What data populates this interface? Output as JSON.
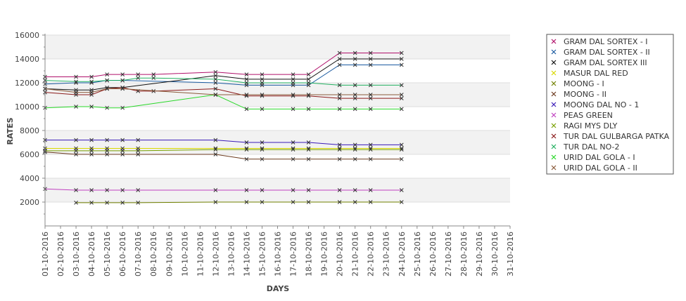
{
  "chart_data": {
    "type": "line",
    "xlabel": "DAYS",
    "ylabel": "RATES",
    "ylim": [
      0,
      16000
    ],
    "yticks": [
      2000,
      4000,
      6000,
      8000,
      10000,
      12000,
      14000,
      16000
    ],
    "grid": "alternating horizontal bands",
    "legend_position": "right",
    "categories": [
      "01-10-2016",
      "02-10-2016",
      "03-10-2016",
      "04-10-2016",
      "05-10-2016",
      "06-10-2016",
      "07-10-2016",
      "08-10-2016",
      "09-10-2016",
      "10-10-2016",
      "11-10-2016",
      "12-10-2016",
      "13-10-2016",
      "14-10-2016",
      "15-10-2016",
      "16-10-2016",
      "17-10-2016",
      "18-10-2016",
      "19-10-2016",
      "20-10-2016",
      "21-10-2016",
      "22-10-2016",
      "23-10-2016",
      "24-10-2016",
      "25-10-2016",
      "26-10-2016",
      "27-10-2016",
      "28-10-2016",
      "29-10-2016",
      "30-10-2016",
      "31-10-2016"
    ],
    "series": [
      {
        "name": "GRAM DAL SORTEX  - I",
        "color": "#b0106a",
        "points": [
          [
            0,
            12500
          ],
          [
            2,
            12500
          ],
          [
            3,
            12500
          ],
          [
            4,
            12700
          ],
          [
            5,
            12700
          ],
          [
            6,
            12700
          ],
          [
            7,
            12700
          ],
          [
            11,
            12900
          ],
          [
            13,
            12700
          ],
          [
            14,
            12700
          ],
          [
            16,
            12700
          ],
          [
            17,
            12700
          ],
          [
            19,
            14500
          ],
          [
            20,
            14500
          ],
          [
            21,
            14500
          ],
          [
            23,
            14500
          ]
        ]
      },
      {
        "name": "GRAM DAL SORTEX - II",
        "color": "#1a5aa0",
        "points": [
          [
            0,
            11900
          ],
          [
            2,
            12000
          ],
          [
            3,
            12000
          ],
          [
            4,
            12200
          ],
          [
            5,
            12200
          ],
          [
            11,
            12000
          ],
          [
            13,
            11800
          ],
          [
            14,
            11800
          ],
          [
            16,
            11800
          ],
          [
            17,
            11800
          ],
          [
            19,
            13500
          ],
          [
            20,
            13500
          ],
          [
            21,
            13500
          ],
          [
            23,
            13500
          ]
        ]
      },
      {
        "name": "GRAM DAL SORTEX III",
        "color": "#111111",
        "points": [
          [
            0,
            11500
          ],
          [
            2,
            11400
          ],
          [
            3,
            11400
          ],
          [
            4,
            11600
          ],
          [
            5,
            11600
          ],
          [
            11,
            12600
          ],
          [
            13,
            12300
          ],
          [
            14,
            12300
          ],
          [
            16,
            12300
          ],
          [
            17,
            12300
          ],
          [
            19,
            14000
          ],
          [
            20,
            14000
          ],
          [
            21,
            14000
          ],
          [
            23,
            14000
          ]
        ]
      },
      {
        "name": "MASUR DAL RED",
        "color": "#d8d800",
        "points": [
          [
            0,
            6500
          ],
          [
            2,
            6500
          ],
          [
            3,
            6500
          ],
          [
            4,
            6500
          ],
          [
            5,
            6500
          ],
          [
            6,
            6500
          ],
          [
            11,
            6500
          ],
          [
            13,
            6500
          ],
          [
            14,
            6500
          ],
          [
            16,
            6500
          ],
          [
            17,
            6500
          ],
          [
            19,
            6500
          ],
          [
            20,
            6500
          ],
          [
            21,
            6500
          ],
          [
            23,
            6500
          ]
        ]
      },
      {
        "name": "MOONG - I",
        "color": "#708000",
        "points": [
          [
            2,
            1950
          ],
          [
            3,
            1950
          ],
          [
            4,
            1950
          ],
          [
            5,
            1950
          ],
          [
            6,
            1950
          ],
          [
            11,
            2000
          ],
          [
            13,
            2000
          ],
          [
            14,
            2000
          ],
          [
            16,
            2000
          ],
          [
            17,
            2000
          ],
          [
            19,
            2000
          ],
          [
            20,
            2000
          ],
          [
            21,
            2000
          ],
          [
            23,
            2000
          ]
        ]
      },
      {
        "name": "MOONG - II",
        "color": "#6b3a1e",
        "points": [
          [
            0,
            6200
          ],
          [
            2,
            6000
          ],
          [
            3,
            6000
          ],
          [
            4,
            6000
          ],
          [
            5,
            6000
          ],
          [
            6,
            6000
          ],
          [
            11,
            6000
          ],
          [
            13,
            5600
          ],
          [
            14,
            5600
          ],
          [
            16,
            5600
          ],
          [
            17,
            5600
          ],
          [
            19,
            5600
          ],
          [
            20,
            5600
          ],
          [
            21,
            5600
          ],
          [
            23,
            5600
          ]
        ]
      },
      {
        "name": "MOONG DAL NO - 1",
        "color": "#3a1ab8",
        "points": [
          [
            0,
            7200
          ],
          [
            2,
            7200
          ],
          [
            3,
            7200
          ],
          [
            4,
            7200
          ],
          [
            5,
            7200
          ],
          [
            6,
            7200
          ],
          [
            11,
            7200
          ],
          [
            13,
            7000
          ],
          [
            14,
            7000
          ],
          [
            16,
            7000
          ],
          [
            17,
            7000
          ],
          [
            19,
            6800
          ],
          [
            20,
            6800
          ],
          [
            21,
            6800
          ],
          [
            23,
            6800
          ]
        ]
      },
      {
        "name": "PEAS GREEN",
        "color": "#c040c0",
        "points": [
          [
            0,
            3100
          ],
          [
            2,
            3000
          ],
          [
            3,
            3000
          ],
          [
            4,
            3000
          ],
          [
            5,
            3000
          ],
          [
            6,
            3000
          ],
          [
            11,
            3000
          ],
          [
            13,
            3000
          ],
          [
            14,
            3000
          ],
          [
            16,
            3000
          ],
          [
            17,
            3000
          ],
          [
            19,
            3000
          ],
          [
            20,
            3000
          ],
          [
            21,
            3000
          ],
          [
            23,
            3000
          ]
        ]
      },
      {
        "name": "RAGI MYS DLY",
        "color": "#78a000",
        "points": [
          [
            0,
            6300
          ],
          [
            2,
            6300
          ],
          [
            3,
            6300
          ],
          [
            4,
            6300
          ],
          [
            5,
            6300
          ],
          [
            6,
            6300
          ],
          [
            11,
            6400
          ],
          [
            13,
            6400
          ],
          [
            14,
            6400
          ],
          [
            16,
            6400
          ],
          [
            17,
            6400
          ],
          [
            19,
            6400
          ],
          [
            20,
            6400
          ],
          [
            21,
            6400
          ],
          [
            23,
            6400
          ]
        ]
      },
      {
        "name": "TUR DAL GULBARGA PATKA",
        "color": "#8b1a1a",
        "points": [
          [
            0,
            11200
          ],
          [
            2,
            11000
          ],
          [
            3,
            11000
          ],
          [
            4,
            11500
          ],
          [
            5,
            11600
          ],
          [
            6,
            11300
          ],
          [
            7,
            11300
          ],
          [
            11,
            11500
          ],
          [
            13,
            10900
          ],
          [
            14,
            10900
          ],
          [
            16,
            10900
          ],
          [
            17,
            10900
          ],
          [
            19,
            10700
          ],
          [
            20,
            10700
          ],
          [
            21,
            10700
          ],
          [
            23,
            10700
          ]
        ]
      },
      {
        "name": "TUR DAL NO-2",
        "color": "#22b060",
        "points": [
          [
            0,
            12200
          ],
          [
            2,
            12100
          ],
          [
            3,
            12100
          ],
          [
            4,
            12200
          ],
          [
            5,
            12200
          ],
          [
            6,
            12400
          ],
          [
            7,
            12400
          ],
          [
            11,
            12300
          ],
          [
            13,
            12000
          ],
          [
            14,
            12000
          ],
          [
            16,
            12000
          ],
          [
            17,
            12000
          ],
          [
            19,
            11800
          ],
          [
            20,
            11800
          ],
          [
            21,
            11800
          ],
          [
            23,
            11800
          ]
        ]
      },
      {
        "name": "URID DAL GOLA - I",
        "color": "#28d828",
        "points": [
          [
            0,
            9900
          ],
          [
            2,
            10000
          ],
          [
            3,
            10000
          ],
          [
            4,
            9900
          ],
          [
            5,
            9900
          ],
          [
            11,
            11000
          ],
          [
            13,
            9800
          ],
          [
            14,
            9800
          ],
          [
            16,
            9800
          ],
          [
            17,
            9800
          ],
          [
            19,
            9800
          ],
          [
            20,
            9800
          ],
          [
            21,
            9800
          ],
          [
            23,
            9800
          ]
        ]
      },
      {
        "name": "URID DAL GOLA - II",
        "color": "#8a5a3a",
        "points": [
          [
            0,
            11500
          ],
          [
            2,
            11200
          ],
          [
            3,
            11200
          ],
          [
            4,
            11500
          ],
          [
            5,
            11500
          ],
          [
            11,
            11000
          ],
          [
            13,
            11000
          ],
          [
            14,
            11000
          ],
          [
            16,
            11000
          ],
          [
            17,
            11000
          ],
          [
            19,
            11000
          ],
          [
            20,
            11000
          ],
          [
            21,
            11000
          ],
          [
            23,
            11000
          ]
        ]
      }
    ]
  }
}
